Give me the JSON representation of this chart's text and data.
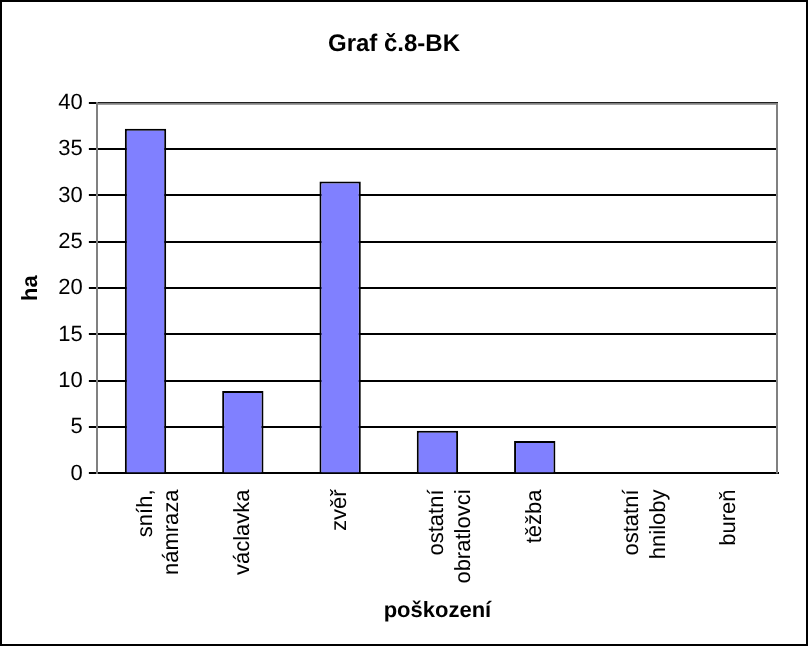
{
  "chart_data": {
    "type": "bar",
    "title": "Graf č.8-BK",
    "xlabel": "poškození",
    "ylabel": "ha",
    "categories": [
      "sníh, námraza",
      "václavka",
      "zvěř",
      "ostatní obratlovci",
      "těžba",
      "ostatní hniloby",
      "bureň"
    ],
    "values": [
      37.2,
      8.9,
      31.5,
      4.6,
      3.5,
      0,
      0
    ],
    "color": "#8080ff",
    "ylim": [
      0,
      40
    ],
    "yticks": [
      0,
      5,
      10,
      15,
      20,
      25,
      30,
      35,
      40
    ],
    "grid": "y",
    "legend": false
  }
}
